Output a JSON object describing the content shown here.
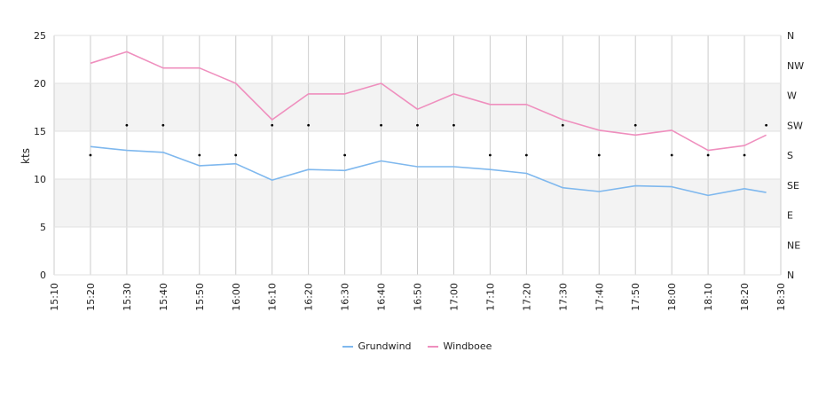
{
  "chart_data": {
    "type": "line",
    "x": [
      "15:10",
      "15:20",
      "15:30",
      "15:40",
      "15:50",
      "16:00",
      "16:10",
      "16:20",
      "16:30",
      "16:40",
      "16:50",
      "17:00",
      "17:10",
      "17:20",
      "17:30",
      "17:40",
      "17:50",
      "18:00",
      "18:10",
      "18:20",
      "18:30"
    ],
    "y_left": {
      "label": "kts",
      "ticks": [
        0,
        5,
        10,
        15,
        20,
        25
      ],
      "ylim": [
        0,
        25
      ]
    },
    "y_right": {
      "ticks": [
        "N",
        "NE",
        "E",
        "SE",
        "S",
        "SW",
        "W",
        "NW",
        "N"
      ]
    },
    "grid": true,
    "bands": [
      [
        5,
        10
      ],
      [
        15,
        20
      ]
    ],
    "series": [
      {
        "name": "Grundwind",
        "color": "#7fb8ee",
        "x": [
          "15:20",
          "15:30",
          "15:40",
          "15:50",
          "16:00",
          "16:10",
          "16:20",
          "16:30",
          "16:40",
          "16:50",
          "17:00",
          "17:10",
          "17:20",
          "17:30",
          "17:40",
          "17:50",
          "18:00",
          "18:10",
          "18:20",
          "18:26"
        ],
        "values": [
          13.4,
          13.0,
          12.8,
          11.4,
          11.6,
          9.9,
          11.0,
          10.9,
          11.9,
          11.3,
          11.3,
          11.0,
          10.6,
          9.1,
          8.7,
          9.3,
          9.2,
          8.3,
          9.0,
          8.6
        ]
      },
      {
        "name": "Windboee",
        "color": "#ef8fbe",
        "x": [
          "15:20",
          "15:30",
          "15:40",
          "15:50",
          "16:00",
          "16:10",
          "16:20",
          "16:30",
          "16:40",
          "16:50",
          "17:00",
          "17:10",
          "17:20",
          "17:30",
          "17:40",
          "17:50",
          "18:00",
          "18:10",
          "18:20",
          "18:26"
        ],
        "values": [
          22.1,
          23.3,
          21.6,
          21.6,
          20.0,
          16.2,
          18.9,
          18.9,
          20.0,
          17.3,
          18.9,
          17.8,
          17.8,
          16.2,
          15.1,
          14.6,
          15.1,
          13.0,
          13.5,
          14.6
        ]
      }
    ],
    "direction": {
      "x": [
        "15:20",
        "15:30",
        "15:40",
        "15:50",
        "16:00",
        "16:10",
        "16:20",
        "16:30",
        "16:40",
        "16:50",
        "17:00",
        "17:10",
        "17:20",
        "17:30",
        "17:40",
        "17:50",
        "18:00",
        "18:10",
        "18:20",
        "18:26"
      ],
      "values": [
        "S",
        "SW",
        "SW",
        "S",
        "S",
        "SW",
        "SW",
        "S",
        "SW",
        "SW",
        "SW",
        "S",
        "S",
        "SW",
        "S",
        "SW",
        "S",
        "S",
        "S",
        "SW"
      ]
    }
  }
}
